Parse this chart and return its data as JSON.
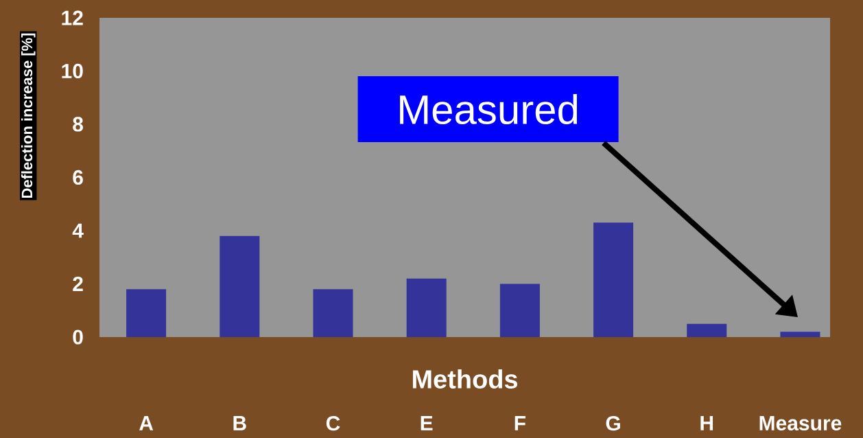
{
  "chart_data": {
    "type": "bar",
    "xlabel": "Methods",
    "ylabel": "Deflection increase [%]",
    "categories": [
      "A",
      "B",
      "C",
      "E",
      "F",
      "G",
      "H",
      "Measure"
    ],
    "values": [
      1.8,
      3.8,
      1.8,
      2.2,
      2.0,
      4.3,
      0.5,
      0.2
    ],
    "color": "#333399",
    "ylim": [
      0,
      12
    ],
    "yticks": [
      0,
      2,
      4,
      6,
      8,
      10,
      12
    ],
    "annotations": [
      "Measured"
    ]
  }
}
